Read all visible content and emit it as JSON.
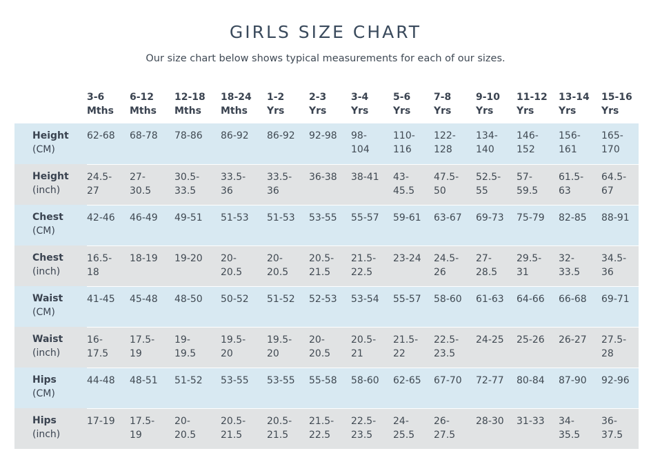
{
  "title": "GIRLS SIZE CHART",
  "subtitle": "Our size chart below shows typical measurements for each of our sizes.",
  "columns": [
    [
      "3-6",
      "Mths"
    ],
    [
      "6-12",
      "Mths"
    ],
    [
      "12-18",
      "Mths"
    ],
    [
      "18-24",
      "Mths"
    ],
    [
      "1-2",
      "Yrs"
    ],
    [
      "2-3",
      "Yrs"
    ],
    [
      "3-4",
      "Yrs"
    ],
    [
      "5-6",
      "Yrs"
    ],
    [
      "7-8",
      "Yrs"
    ],
    [
      "9-10",
      "Yrs"
    ],
    [
      "11-12",
      "Yrs"
    ],
    [
      "13-14",
      "Yrs"
    ],
    [
      "15-16",
      "Yrs"
    ]
  ],
  "rows": [
    {
      "label": "Height",
      "unit": "(CM)",
      "shade": "cm",
      "values": [
        [
          "62-68"
        ],
        [
          "68-78"
        ],
        [
          "78-86"
        ],
        [
          "86-92"
        ],
        [
          "86-92"
        ],
        [
          "92-98"
        ],
        [
          "98-",
          "104"
        ],
        [
          "110-",
          "116"
        ],
        [
          "122-",
          "128"
        ],
        [
          "134-",
          "140"
        ],
        [
          "146-",
          "152"
        ],
        [
          "156-",
          "161"
        ],
        [
          "165-",
          "170"
        ]
      ]
    },
    {
      "label": "Height",
      "unit": "(inch)",
      "shade": "inch",
      "values": [
        [
          "24.5-",
          "27"
        ],
        [
          "27-",
          "30.5"
        ],
        [
          "30.5-",
          "33.5"
        ],
        [
          "33.5-",
          "36"
        ],
        [
          "33.5-",
          "36"
        ],
        [
          "36-38"
        ],
        [
          "38-41"
        ],
        [
          "43-",
          "45.5"
        ],
        [
          "47.5-",
          "50"
        ],
        [
          "52.5-",
          "55"
        ],
        [
          "57-",
          "59.5"
        ],
        [
          "61.5-",
          "63"
        ],
        [
          "64.5-",
          "67"
        ]
      ]
    },
    {
      "label": "Chest",
      "unit": "(CM)",
      "shade": "cm",
      "values": [
        [
          "42-46"
        ],
        [
          "46-49"
        ],
        [
          "49-51"
        ],
        [
          "51-53"
        ],
        [
          "51-53"
        ],
        [
          "53-55"
        ],
        [
          "55-57"
        ],
        [
          "59-61"
        ],
        [
          "63-67"
        ],
        [
          "69-73"
        ],
        [
          "75-79"
        ],
        [
          "82-85"
        ],
        [
          "88-91"
        ]
      ]
    },
    {
      "label": "Chest",
      "unit": "(inch)",
      "shade": "inch",
      "values": [
        [
          "16.5-",
          "18"
        ],
        [
          "18-19"
        ],
        [
          "19-20"
        ],
        [
          "20-",
          "20.5"
        ],
        [
          "20-",
          "20.5"
        ],
        [
          "20.5-",
          "21.5"
        ],
        [
          "21.5-",
          "22.5"
        ],
        [
          "23-24"
        ],
        [
          "24.5-",
          "26"
        ],
        [
          "27-",
          "28.5"
        ],
        [
          "29.5-",
          "31"
        ],
        [
          "32-",
          "33.5"
        ],
        [
          "34.5-",
          "36"
        ]
      ]
    },
    {
      "label": "Waist",
      "unit": "(CM)",
      "shade": "cm",
      "values": [
        [
          "41-45"
        ],
        [
          "45-48"
        ],
        [
          "48-50"
        ],
        [
          "50-52"
        ],
        [
          "51-52"
        ],
        [
          "52-53"
        ],
        [
          "53-54"
        ],
        [
          "55-57"
        ],
        [
          "58-60"
        ],
        [
          "61-63"
        ],
        [
          "64-66"
        ],
        [
          "66-68"
        ],
        [
          "69-71"
        ]
      ]
    },
    {
      "label": "Waist",
      "unit": "(inch)",
      "shade": "inch",
      "values": [
        [
          "16-",
          "17.5"
        ],
        [
          "17.5-",
          "19"
        ],
        [
          "19-",
          "19.5"
        ],
        [
          "19.5-",
          "20"
        ],
        [
          "19.5-",
          "20"
        ],
        [
          "20-",
          "20.5"
        ],
        [
          "20.5-",
          "21"
        ],
        [
          "21.5-",
          "22"
        ],
        [
          "22.5-",
          "23.5"
        ],
        [
          "24-25"
        ],
        [
          "25-26"
        ],
        [
          "26-27"
        ],
        [
          "27.5-",
          "28"
        ]
      ]
    },
    {
      "label": "Hips",
      "unit": "(CM)",
      "shade": "cm",
      "values": [
        [
          "44-48"
        ],
        [
          "48-51"
        ],
        [
          "51-52"
        ],
        [
          "53-55"
        ],
        [
          "53-55"
        ],
        [
          "55-58"
        ],
        [
          "58-60"
        ],
        [
          "62-65"
        ],
        [
          "67-70"
        ],
        [
          "72-77"
        ],
        [
          "80-84"
        ],
        [
          "87-90"
        ],
        [
          "92-96"
        ]
      ]
    },
    {
      "label": "Hips",
      "unit": "(inch)",
      "shade": "inch",
      "values": [
        [
          "17-19"
        ],
        [
          "17.5-",
          "19"
        ],
        [
          "20-",
          "20.5"
        ],
        [
          "20.5-",
          "21.5"
        ],
        [
          "20.5-",
          "21.5"
        ],
        [
          "21.5-",
          "22.5"
        ],
        [
          "22.5-",
          "23.5"
        ],
        [
          "24-",
          "25.5"
        ],
        [
          "26-",
          "27.5"
        ],
        [
          "28-30"
        ],
        [
          "31-33"
        ],
        [
          "34-",
          "35.5"
        ],
        [
          "36-",
          "37.5"
        ]
      ]
    }
  ]
}
